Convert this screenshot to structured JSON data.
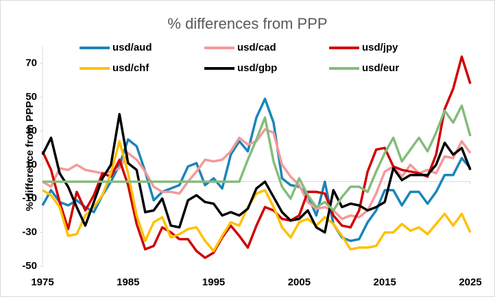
{
  "chart_data": {
    "type": "line",
    "title": "% differences from PPP",
    "y_label": "% difference from PPP",
    "x": [
      1975,
      1976,
      1977,
      1978,
      1979,
      1980,
      1981,
      1982,
      1983,
      1984,
      1985,
      1986,
      1987,
      1988,
      1989,
      1990,
      1991,
      1992,
      1993,
      1994,
      1995,
      1996,
      1997,
      1998,
      1999,
      2000,
      2001,
      2002,
      2003,
      2004,
      2005,
      2006,
      2007,
      2008,
      2009,
      2010,
      2011,
      2012,
      2013,
      2014,
      2015,
      2016,
      2017,
      2018,
      2019,
      2020,
      2021,
      2022,
      2023,
      2024,
      2025
    ],
    "xlim": [
      1975,
      2025
    ],
    "xticks": [
      1975,
      1985,
      1995,
      2005,
      2015,
      2025
    ],
    "ylim": [
      -50,
      80
    ],
    "yticks": [
      -50,
      -30,
      -10,
      10,
      30,
      50,
      70
    ],
    "grid": false,
    "series": [
      {
        "name": "usd/aud",
        "color": "#1a85b8",
        "values": [
          -14,
          -5,
          -12,
          -14,
          -11,
          -15,
          -18,
          -8,
          0,
          10,
          25,
          21,
          6,
          -11,
          -6,
          -4,
          -2,
          9,
          11,
          -2,
          2,
          -4,
          16,
          24,
          18,
          38,
          49,
          35,
          2,
          -2,
          -3,
          -8,
          -20,
          0,
          -25,
          -33,
          -35,
          -34,
          -24,
          -17,
          -5,
          -5,
          -14,
          -6,
          -6,
          -13,
          -6,
          4,
          4,
          14,
          8
        ]
      },
      {
        "name": "usd/cad",
        "color": "#f4999b",
        "values": [
          0,
          -3,
          8,
          7,
          10,
          7,
          6,
          5,
          6,
          8,
          17,
          13,
          6,
          -3,
          -6,
          -6,
          -7,
          0,
          6,
          13,
          12,
          13,
          18,
          26,
          22,
          24,
          31,
          29,
          10,
          3,
          -2,
          -12,
          -16,
          -15,
          -17,
          -22,
          -20,
          -21,
          -17,
          -7,
          6,
          9,
          3,
          10,
          5,
          7,
          5,
          15,
          14,
          24,
          17
        ]
      },
      {
        "name": "usd/jpy",
        "color": "#d00000",
        "values": [
          18,
          7,
          -12,
          -28,
          -6,
          -17,
          -8,
          5,
          3,
          13,
          -2,
          -25,
          -40,
          -38,
          -27,
          -30,
          -34,
          -34,
          -41,
          -45,
          -42,
          -33,
          -26,
          -32,
          -39,
          -26,
          -15,
          -17,
          -22,
          -23,
          -20,
          -6,
          -6,
          -7,
          -20,
          -26,
          -27,
          -17,
          6,
          19,
          20,
          9,
          7,
          6,
          5,
          3,
          16,
          43,
          55,
          74,
          58
        ]
      },
      {
        "name": "usd/chf",
        "color": "#ffc000",
        "values": [
          -5,
          -8,
          -15,
          -32,
          -31,
          -20,
          -15,
          -8,
          5,
          24,
          5,
          -20,
          -35,
          -24,
          -21,
          -33,
          -31,
          -28,
          -27,
          -35,
          -41,
          -32,
          -24,
          -26,
          -15,
          -7,
          -5,
          -15,
          -27,
          -33,
          -24,
          -22,
          -26,
          -21,
          -25,
          -32,
          -40,
          -39,
          -39,
          -38,
          -30,
          -30,
          -25,
          -29,
          -27,
          -31,
          -25,
          -19,
          -26,
          -19,
          -30
        ]
      },
      {
        "name": "usd/gbp",
        "color": "#000000",
        "values": [
          16,
          26,
          5,
          -3,
          -15,
          -26,
          -12,
          2,
          10,
          40,
          11,
          7,
          -18,
          -17,
          -10,
          -26,
          -27,
          -11,
          -8,
          -12,
          -13,
          -20,
          -18,
          -20,
          -16,
          -4,
          0,
          -9,
          -18,
          -23,
          -22,
          -17,
          -27,
          -30,
          -5,
          -15,
          -13,
          -14,
          -17,
          -15,
          -12,
          8,
          1,
          4,
          4,
          4,
          10,
          23,
          16,
          20,
          7
        ]
      },
      {
        "name": "usd/eur",
        "color": "#84bc7b",
        "values": [
          0,
          0,
          0,
          0,
          0,
          0,
          0,
          0,
          0,
          0,
          0,
          0,
          0,
          0,
          0,
          0,
          0,
          0,
          0,
          0,
          0,
          0,
          0,
          0,
          13,
          25,
          38,
          12,
          -3,
          -10,
          2,
          -8,
          -15,
          -12,
          -17,
          -9,
          -3,
          -3,
          -6,
          6,
          17,
          26,
          12,
          19,
          26,
          18,
          29,
          42,
          35,
          45,
          27
        ]
      }
    ]
  }
}
